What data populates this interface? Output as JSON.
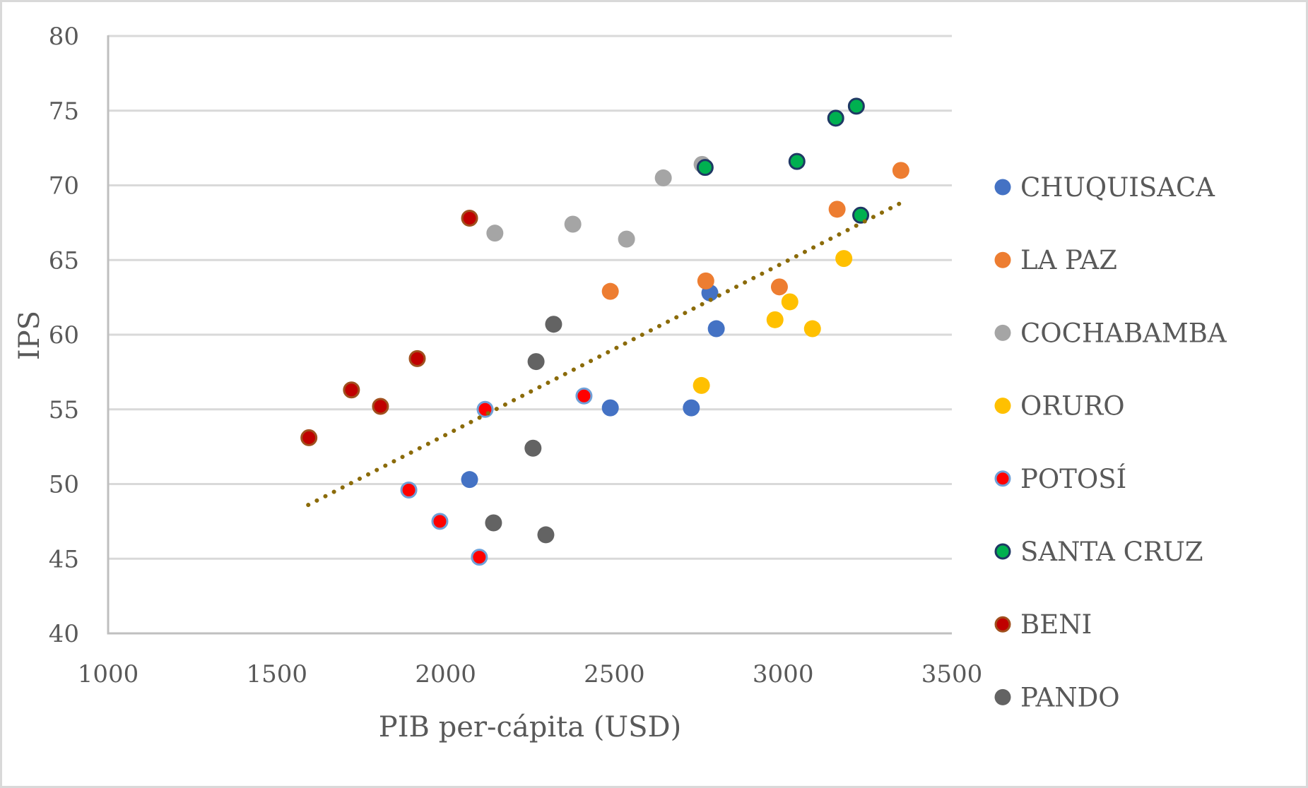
{
  "chart_data": {
    "type": "scatter",
    "title": "",
    "xlabel": "PIB per-cápita (USD)",
    "ylabel": "IPS",
    "xlim": [
      1000,
      3500
    ],
    "ylim": [
      40,
      80
    ],
    "x_ticks": [
      1000,
      1500,
      2000,
      2500,
      3000,
      3500
    ],
    "y_ticks": [
      40,
      45,
      50,
      55,
      60,
      65,
      70,
      75,
      80
    ],
    "grid": "horizontal",
    "legend_position": "right",
    "series": [
      {
        "name": "CHUQUISACA",
        "fill": "#4472c4",
        "stroke": "#4472c4",
        "points": [
          [
            2783,
            62.8
          ],
          [
            2802,
            60.4
          ],
          [
            2488,
            55.1
          ],
          [
            2728,
            55.1
          ],
          [
            2071,
            50.3
          ]
        ]
      },
      {
        "name": "LA PAZ",
        "fill": "#ed7d31",
        "stroke": "#ed7d31",
        "points": [
          [
            3349,
            71.0
          ],
          [
            3160,
            68.4
          ],
          [
            2771,
            63.6
          ],
          [
            2989,
            63.2
          ],
          [
            2488,
            62.9
          ]
        ]
      },
      {
        "name": "COCHABAMBA",
        "fill": "#a5a5a5",
        "stroke": "#a5a5a5",
        "points": [
          [
            2760,
            71.4
          ],
          [
            2645,
            70.5
          ],
          [
            2377,
            67.4
          ],
          [
            2146,
            66.8
          ],
          [
            2536,
            66.4
          ]
        ]
      },
      {
        "name": "ORURO",
        "fill": "#ffc000",
        "stroke": "#ffc000",
        "points": [
          [
            3180,
            65.1
          ],
          [
            3020,
            62.2
          ],
          [
            2976,
            61.0
          ],
          [
            3087,
            60.4
          ],
          [
            2758,
            56.6
          ]
        ]
      },
      {
        "name": "POTOSÍ",
        "fill": "#ff0000",
        "stroke": "#6fa0d8",
        "points": [
          [
            2117,
            55.0
          ],
          [
            2410,
            55.9
          ],
          [
            1891,
            49.6
          ],
          [
            1983,
            47.5
          ],
          [
            2100,
            45.1
          ]
        ]
      },
      {
        "name": "SANTA CRUZ",
        "fill": "#00b050",
        "stroke": "#1f3864",
        "points": [
          [
            3217,
            75.3
          ],
          [
            3156,
            74.5
          ],
          [
            3041,
            71.6
          ],
          [
            2769,
            71.2
          ],
          [
            3230,
            68.0
          ]
        ]
      },
      {
        "name": "BENI",
        "fill": "#c00000",
        "stroke": "#a0501e",
        "points": [
          [
            2071,
            67.8
          ],
          [
            1916,
            58.4
          ],
          [
            1721,
            56.3
          ],
          [
            1807,
            55.2
          ],
          [
            1595,
            53.1
          ]
        ]
      },
      {
        "name": "PANDO",
        "fill": "#636363",
        "stroke": "#636363",
        "points": [
          [
            2320,
            60.7
          ],
          [
            2268,
            58.2
          ],
          [
            2259,
            52.4
          ],
          [
            2142,
            47.4
          ],
          [
            2297,
            46.6
          ]
        ]
      }
    ],
    "trendline": {
      "type": "linear",
      "style": "dotted",
      "color": "#8b6b0a",
      "from": [
        1593,
        48.6
      ],
      "to": [
        3347,
        68.8
      ]
    }
  }
}
